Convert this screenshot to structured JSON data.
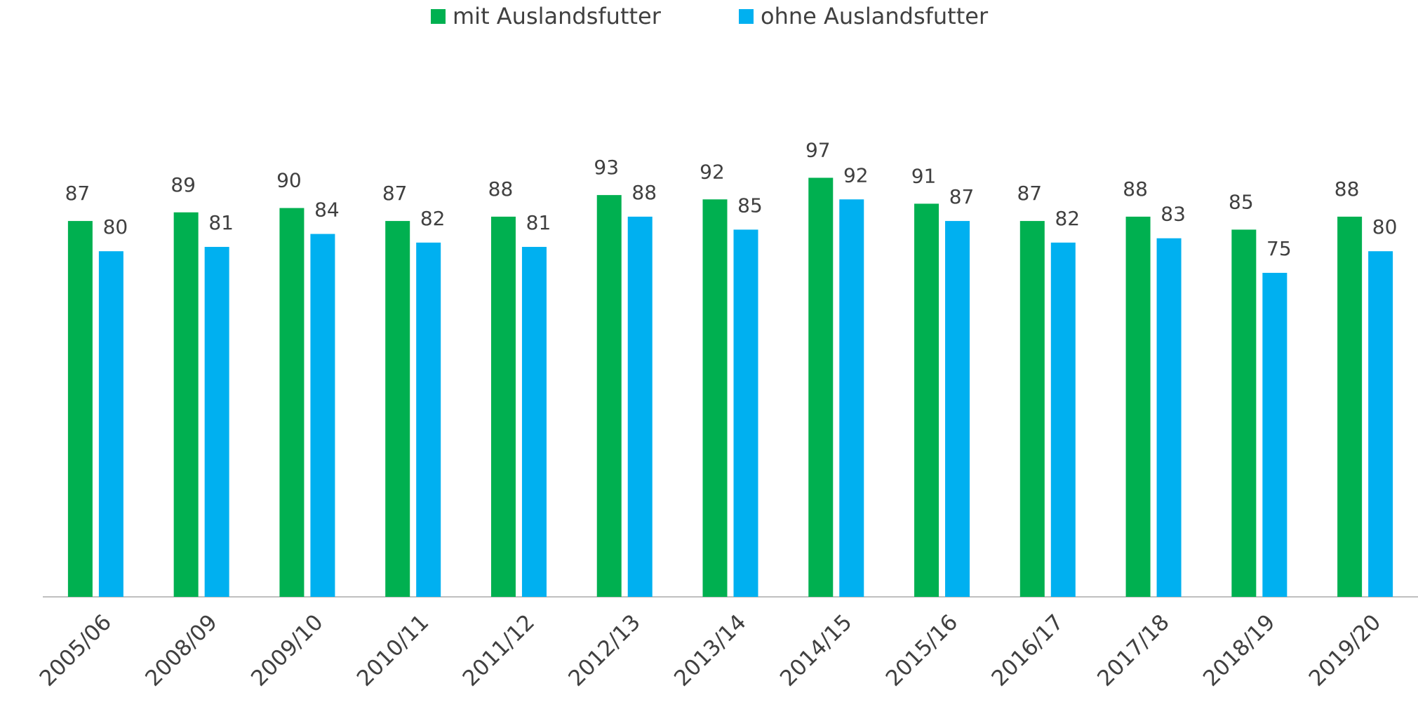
{
  "chart_data": {
    "type": "bar",
    "categories": [
      "2005/06",
      "2008/09",
      "2009/10",
      "2010/11",
      "2011/12",
      "2012/13",
      "2013/14",
      "2014/15",
      "2015/16",
      "2016/17",
      "2017/18",
      "2018/19",
      "2019/20"
    ],
    "series": [
      {
        "name": "mit Auslandsfutter",
        "color": "#00b050",
        "values": [
          87,
          89,
          90,
          87,
          88,
          93,
          92,
          97,
          91,
          87,
          88,
          85,
          88
        ]
      },
      {
        "name": "ohne Auslandsfutter",
        "color": "#00b0f0",
        "values": [
          80,
          81,
          84,
          82,
          81,
          88,
          85,
          92,
          87,
          82,
          83,
          75,
          80
        ]
      }
    ]
  }
}
